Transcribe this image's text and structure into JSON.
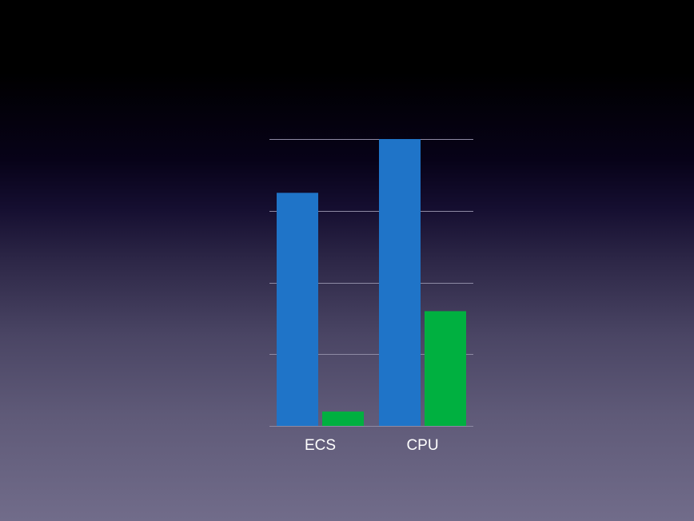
{
  "chart_data": {
    "type": "bar",
    "categories": [
      "ECS",
      "CPU"
    ],
    "series": [
      {
        "values": [
          3.25,
          4.0
        ]
      },
      {
        "values": [
          0.2,
          1.6
        ]
      }
    ],
    "ylim": [
      0,
      4
    ],
    "y_gridlines": [
      0,
      1,
      2,
      3,
      4
    ],
    "grid": true,
    "legend": "none",
    "colors": [
      "#1f74c8",
      "#00b040"
    ]
  }
}
